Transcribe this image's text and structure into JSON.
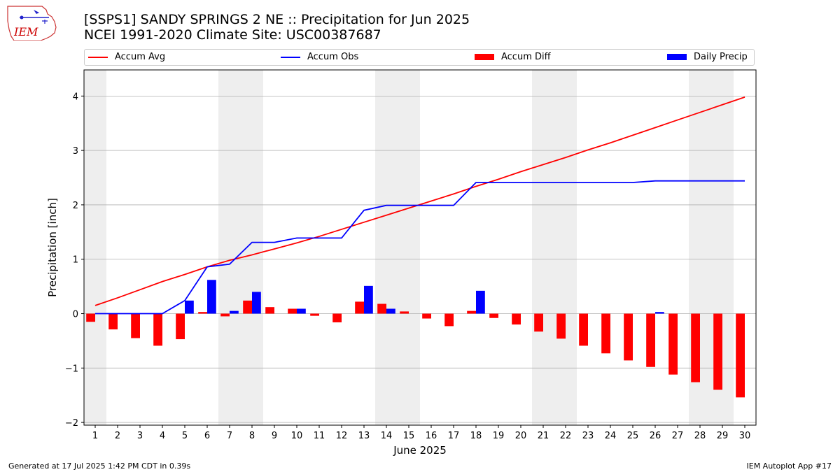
{
  "header": {
    "title_line1": "[SSPS1] SANDY SPRINGS 2 NE :: Precipitation for Jun 2025",
    "title_line2": "NCEI 1991-2020 Climate Site: USC00387687"
  },
  "logo": {
    "text": "IEM",
    "color": "#cc0000"
  },
  "legend": {
    "accum_avg": "Accum Avg",
    "accum_obs": "Accum Obs",
    "accum_diff": "Accum Diff",
    "daily_precip": "Daily Precip"
  },
  "footer": {
    "generated": "Generated at 17 Jul 2025 1:42 PM CDT in 0.39s",
    "app": "IEM Autoplot App #17"
  },
  "chart_data": {
    "type": "bar",
    "xlabel": "June 2025",
    "ylabel": "Precipitation [inch]",
    "xlim": [
      0.5,
      30.5
    ],
    "ylim": [
      -2.05,
      4.48
    ],
    "yticks": [
      -2,
      -1,
      0,
      1,
      2,
      3,
      4
    ],
    "ytick_labels": [
      "−2",
      "−1",
      "0",
      "1",
      "2",
      "3",
      "4"
    ],
    "grid": "horizontal",
    "legend_position": "top",
    "weekend_shading": [
      [
        0.5,
        1.5
      ],
      [
        6.5,
        8.5
      ],
      [
        13.5,
        15.5
      ],
      [
        20.5,
        22.5
      ],
      [
        27.5,
        29.5
      ]
    ],
    "days": [
      1,
      2,
      3,
      4,
      5,
      6,
      7,
      8,
      9,
      10,
      11,
      12,
      13,
      14,
      15,
      16,
      17,
      18,
      19,
      20,
      21,
      22,
      23,
      24,
      25,
      26,
      27,
      28,
      29,
      30
    ],
    "series": [
      {
        "name": "Accum Avg",
        "kind": "line",
        "color": "#ff0000",
        "values": [
          0.15,
          0.29,
          0.44,
          0.59,
          0.72,
          0.86,
          0.98,
          1.08,
          1.19,
          1.3,
          1.42,
          1.55,
          1.68,
          1.81,
          1.94,
          2.07,
          2.2,
          2.34,
          2.47,
          2.61,
          2.74,
          2.87,
          3.01,
          3.14,
          3.28,
          3.42,
          3.56,
          3.7,
          3.84,
          3.98
        ]
      },
      {
        "name": "Accum Obs",
        "kind": "line",
        "color": "#0000ff",
        "values": [
          0.0,
          0.0,
          0.0,
          0.0,
          0.24,
          0.86,
          0.91,
          1.31,
          1.31,
          1.39,
          1.39,
          1.39,
          1.9,
          1.99,
          1.99,
          1.99,
          1.99,
          2.41,
          2.41,
          2.41,
          2.41,
          2.41,
          2.41,
          2.41,
          2.41,
          2.44,
          2.44,
          2.44,
          2.44,
          2.44
        ]
      },
      {
        "name": "Accum Diff",
        "kind": "bar",
        "color": "#ff0000",
        "values": [
          -0.15,
          -0.29,
          -0.45,
          -0.59,
          -0.47,
          0.03,
          -0.05,
          0.24,
          0.12,
          0.09,
          -0.04,
          -0.16,
          0.22,
          0.18,
          0.04,
          -0.09,
          -0.23,
          0.05,
          -0.08,
          -0.2,
          -0.33,
          -0.46,
          -0.59,
          -0.73,
          -0.86,
          -0.98,
          -1.12,
          -1.26,
          -1.4,
          -1.54
        ]
      },
      {
        "name": "Daily Precip",
        "kind": "bar",
        "color": "#0000ff",
        "values": [
          0,
          0,
          0,
          0,
          0.24,
          0.62,
          0.05,
          0.4,
          0,
          0.09,
          0,
          0,
          0.51,
          0.09,
          0,
          0,
          0,
          0.42,
          0,
          0,
          0,
          0,
          0,
          0,
          0,
          0.03,
          0,
          0,
          0,
          0
        ]
      }
    ]
  }
}
